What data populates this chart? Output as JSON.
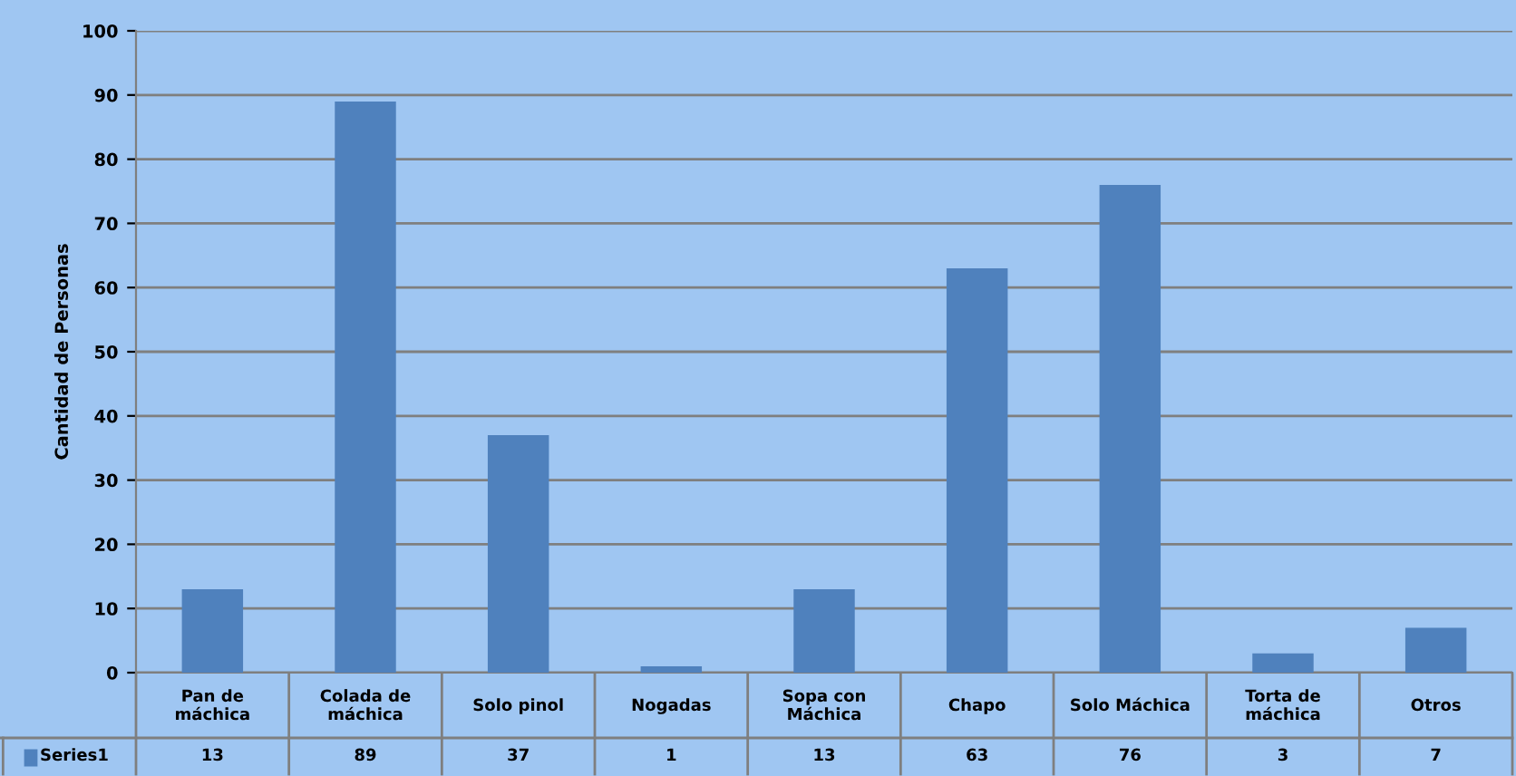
{
  "chart_data": {
    "type": "bar",
    "ylabel": "Cantidad de Personas",
    "categories": [
      "Pan de\nmáchica",
      "Colada de\nmáchica",
      "Solo pinol",
      "Nogadas",
      "Sopa con\nMáchica",
      "Chapo",
      "Solo Máchica",
      "Torta de\nmáchica",
      "Otros"
    ],
    "series": [
      {
        "name": "Series1",
        "color": "#4f81bd",
        "values": [
          13,
          89,
          37,
          1,
          13,
          63,
          76,
          3,
          7
        ]
      }
    ],
    "ylim": [
      0,
      100
    ],
    "yticks": [
      0,
      10,
      20,
      30,
      40,
      50,
      60,
      70,
      80,
      90,
      100
    ],
    "grid": "y",
    "data_labels": true
  }
}
